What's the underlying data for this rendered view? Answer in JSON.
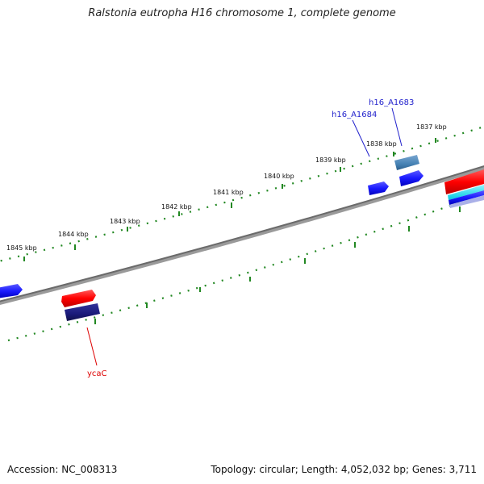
{
  "title": "Ralstonia eutropha H16 chromosome 1, complete genome",
  "footer": {
    "accession": "Accession: NC_008313",
    "stats": "Topology: circular; Length: 4,052,032 bp; Genes: 3,711"
  },
  "ticks": [
    "1837 kbp",
    "1838 kbp",
    "1839 kbp",
    "1840 kbp",
    "1841 kbp",
    "1842 kbp",
    "1843 kbp",
    "1844 kbp",
    "1845 kbp"
  ],
  "gene_labels": [
    "h16_A1683",
    "h16_A1684",
    "ycaC"
  ],
  "colors": {
    "backbone": "#777777",
    "ticks": "#228822",
    "gene_forward": "#1a1aff",
    "gene_red": "#ff0000",
    "gene_navy": "#1a1a7a",
    "gene_steel": "#4682b4",
    "gene_cyan": "#00e5ff",
    "label_blue": "#2222cc",
    "label_red": "#dd0000"
  }
}
